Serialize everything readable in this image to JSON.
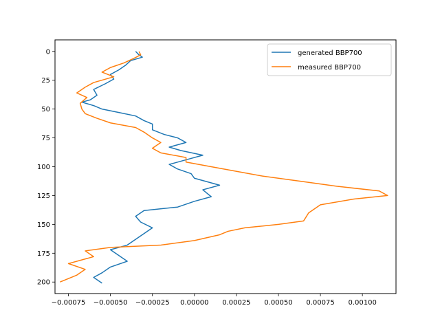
{
  "chart_data": {
    "type": "line",
    "title": "",
    "xlabel": "",
    "ylabel": "",
    "xlim": [
      -0.00083,
      0.0012
    ],
    "ylim": [
      0,
      210
    ],
    "ylim_display": [
      210,
      -10
    ],
    "y_inverted": true,
    "grid": false,
    "legend_position": "top-right",
    "x_ticks": [
      -0.00075,
      -0.0005,
      -0.00025,
      0.0,
      0.00025,
      0.0005,
      0.00075,
      0.001
    ],
    "x_tick_labels": [
      "−0.00075",
      "−0.00050",
      "−0.00025",
      "0.00000",
      "0.00025",
      "0.00050",
      "0.00075",
      "0.00100"
    ],
    "y_ticks": [
      0,
      25,
      50,
      75,
      100,
      125,
      150,
      175,
      200
    ],
    "y_tick_labels": [
      "0",
      "25",
      "50",
      "75",
      "100",
      "125",
      "150",
      "175",
      "200"
    ],
    "series": [
      {
        "name": "generated BBP700",
        "color": "#1f77b4",
        "points": [
          [
            -0.00035,
            0
          ],
          [
            -0.00033,
            3
          ],
          [
            -0.00031,
            5
          ],
          [
            -0.00038,
            8
          ],
          [
            -0.00041,
            12
          ],
          [
            -0.00045,
            16
          ],
          [
            -0.0005,
            20
          ],
          [
            -0.00048,
            24
          ],
          [
            -0.00053,
            28
          ],
          [
            -0.0006,
            33
          ],
          [
            -0.00058,
            38
          ],
          [
            -0.00062,
            42
          ],
          [
            -0.00067,
            44
          ],
          [
            -0.0006,
            47
          ],
          [
            -0.00055,
            50
          ],
          [
            -0.00045,
            53
          ],
          [
            -0.00035,
            56
          ],
          [
            -0.0003,
            60
          ],
          [
            -0.00025,
            63
          ],
          [
            -0.00025,
            68
          ],
          [
            -0.00018,
            72
          ],
          [
            -0.0001,
            75
          ],
          [
            -5e-05,
            79
          ],
          [
            -0.00015,
            83
          ],
          [
            -8e-05,
            86
          ],
          [
            5e-05,
            90
          ],
          [
            -5e-05,
            94
          ],
          [
            -0.00015,
            98
          ],
          [
            -0.0001,
            102
          ],
          [
            -2e-05,
            106
          ],
          [
            0.0,
            110
          ],
          [
            0.00015,
            116
          ],
          [
            5e-05,
            120
          ],
          [
            0.0001,
            126
          ],
          [
            0.0,
            130
          ],
          [
            -0.0001,
            135
          ],
          [
            -0.0003,
            138
          ],
          [
            -0.00035,
            143
          ],
          [
            -0.00032,
            148
          ],
          [
            -0.00025,
            153
          ],
          [
            -0.0003,
            158
          ],
          [
            -0.00035,
            163
          ],
          [
            -0.0004,
            168
          ],
          [
            -0.0005,
            172
          ],
          [
            -0.00045,
            177
          ],
          [
            -0.0004,
            182
          ],
          [
            -0.0005,
            187
          ],
          [
            -0.00055,
            192
          ],
          [
            -0.0006,
            196
          ],
          [
            -0.00055,
            201
          ]
        ]
      },
      {
        "name": "measured BBP700",
        "color": "#ff7f0e",
        "points": [
          [
            -0.00033,
            0
          ],
          [
            -0.00032,
            3
          ],
          [
            -0.00036,
            6
          ],
          [
            -0.00042,
            10
          ],
          [
            -0.0005,
            14
          ],
          [
            -0.00055,
            18
          ],
          [
            -0.00048,
            22
          ],
          [
            -0.0006,
            27
          ],
          [
            -0.00065,
            31
          ],
          [
            -0.0007,
            36
          ],
          [
            -0.00064,
            40
          ],
          [
            -0.00068,
            45
          ],
          [
            -0.00067,
            50
          ],
          [
            -0.00065,
            54
          ],
          [
            -0.00058,
            58
          ],
          [
            -0.0005,
            62
          ],
          [
            -0.00035,
            66
          ],
          [
            -0.0003,
            70
          ],
          [
            -0.00025,
            75
          ],
          [
            -0.0002,
            79
          ],
          [
            -0.00025,
            84
          ],
          [
            -0.0002,
            88
          ],
          [
            -5e-05,
            92
          ],
          [
            -5e-05,
            96
          ],
          [
            0.0001,
            100
          ],
          [
            0.0004,
            108
          ],
          [
            0.00065,
            113
          ],
          [
            0.00085,
            117
          ],
          [
            0.0011,
            121
          ],
          [
            0.00115,
            125
          ],
          [
            0.00095,
            128
          ],
          [
            0.00075,
            133
          ],
          [
            0.00068,
            140
          ],
          [
            0.00065,
            147
          ],
          [
            0.0005,
            150
          ],
          [
            0.0003,
            153
          ],
          [
            0.0002,
            156
          ],
          [
            0.00015,
            159
          ],
          [
            0.0,
            164
          ],
          [
            -0.0002,
            168
          ],
          [
            -0.0005,
            170
          ],
          [
            -0.00065,
            173
          ],
          [
            -0.0006,
            178
          ],
          [
            -0.00075,
            184
          ],
          [
            -0.00065,
            189
          ],
          [
            -0.0007,
            194
          ],
          [
            -0.00075,
            197
          ],
          [
            -0.0008,
            200
          ]
        ]
      }
    ]
  }
}
